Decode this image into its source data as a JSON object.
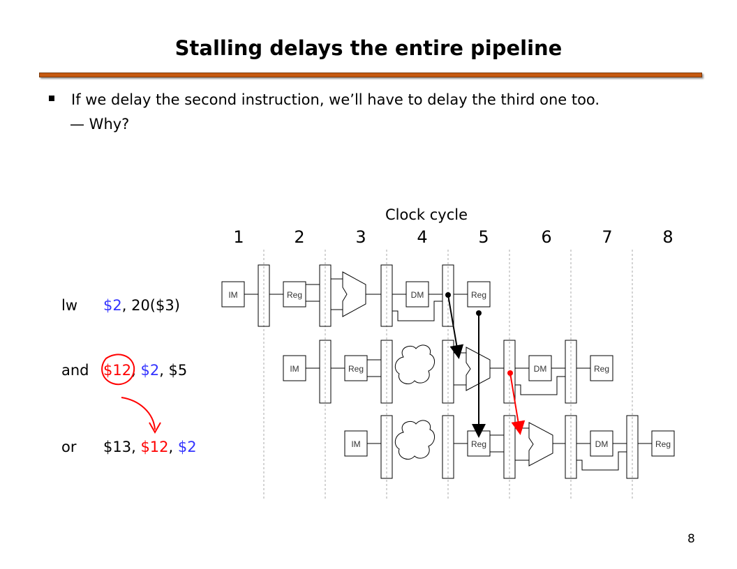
{
  "title": "Stalling delays the entire pipeline",
  "bullet": "If we delay the second instruction, we’ll have to delay the third one too.",
  "sub_bullet": "— Why?",
  "clock_label": "Clock cycle",
  "cycles": [
    "1",
    "2",
    "3",
    "4",
    "5",
    "6",
    "7",
    "8"
  ],
  "instructions": [
    {
      "op": "lw",
      "parts": [
        {
          "t": "$2",
          "c": "blue"
        },
        {
          "t": ", 20($3)",
          "c": ""
        }
      ]
    },
    {
      "op": "and",
      "parts": [
        {
          "t": "$12",
          "c": "red"
        },
        {
          "t": ", ",
          "c": ""
        },
        {
          "t": "$2",
          "c": "blue"
        },
        {
          "t": ", $5",
          "c": ""
        }
      ]
    },
    {
      "op": "or",
      "parts": [
        {
          "t": "$13, ",
          "c": ""
        },
        {
          "t": "$12",
          "c": "red"
        },
        {
          "t": ", ",
          "c": ""
        },
        {
          "t": "$2",
          "c": "blue"
        }
      ]
    }
  ],
  "stage_labels": {
    "im": "IM",
    "reg": "Reg",
    "dm": "DM"
  },
  "colors": {
    "title_bar": "#c65a11",
    "blue": "#3333ff",
    "red": "#ff0000"
  },
  "page_number": "8"
}
